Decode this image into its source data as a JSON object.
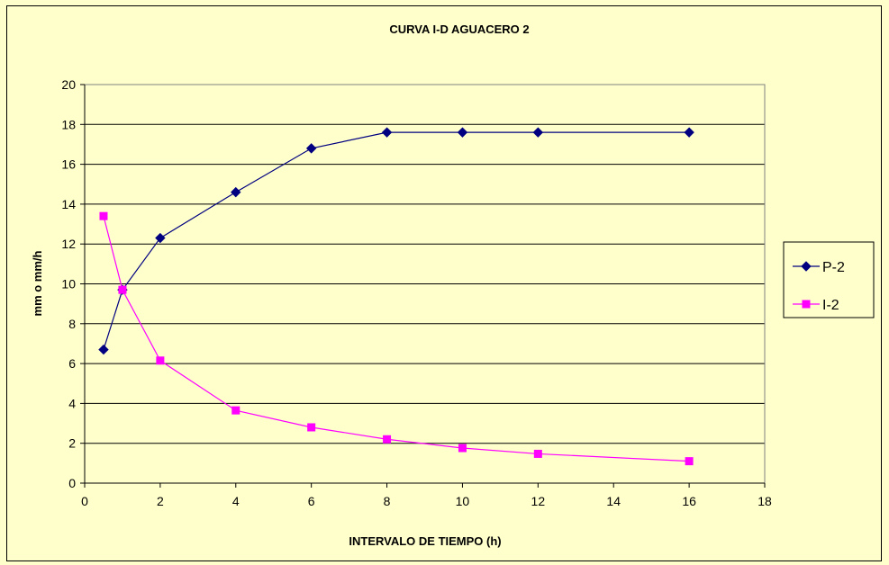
{
  "chart_data": {
    "type": "line",
    "title": "CURVA I-D  AGUACERO 2",
    "xlabel": "INTERVALO DE TIEMPO (h)",
    "ylabel": "mm  o mm/h",
    "xlim": [
      0,
      18
    ],
    "ylim": [
      0,
      20
    ],
    "xticks": [
      "0",
      "2",
      "4",
      "6",
      "8",
      "10",
      "12",
      "14",
      "16",
      "18"
    ],
    "yticks": [
      "0",
      "2",
      "4",
      "6",
      "8",
      "10",
      "12",
      "14",
      "16",
      "18",
      "20"
    ],
    "grid": "horizontal",
    "legend_position": "right",
    "series": [
      {
        "name": "P-2",
        "color": "#000080",
        "marker": "diamond",
        "x": [
          0.5,
          1,
          2,
          4,
          6,
          8,
          10,
          12,
          16
        ],
        "y": [
          6.7,
          9.7,
          12.3,
          14.6,
          16.8,
          17.6,
          17.6,
          17.6,
          17.6
        ]
      },
      {
        "name": "I-2",
        "color": "#FF00FF",
        "marker": "square",
        "x": [
          0.5,
          1,
          2,
          4,
          6,
          8,
          10,
          12,
          16
        ],
        "y": [
          13.4,
          9.7,
          6.15,
          3.65,
          2.8,
          2.2,
          1.76,
          1.47,
          1.1
        ]
      }
    ]
  }
}
